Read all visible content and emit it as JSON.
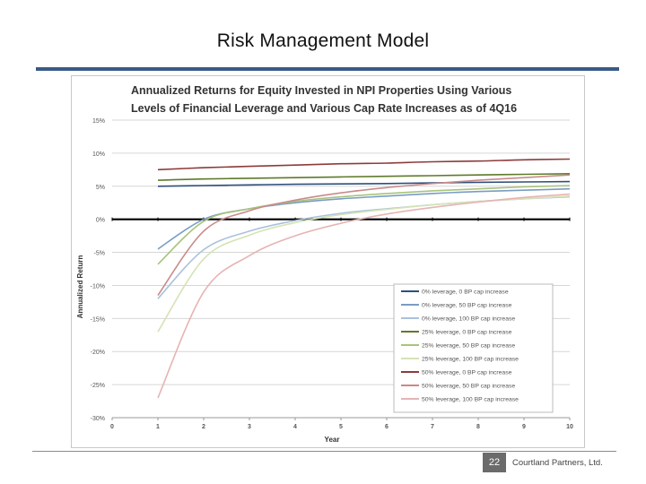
{
  "slide": {
    "title": "Risk Management Model",
    "page_number": "22",
    "company": "Courtland Partners, Ltd."
  },
  "chart_data": {
    "type": "line",
    "title": "Annualized Returns for Equity Invested in NPI Properties Using Various Levels of Financial Leverage and Various Cap Rate Increases as of 4Q16",
    "title_lines": [
      "Annualized Returns for Equity Invested in NPI Properties Using Various",
      "Levels of Financial Leverage and Various Cap Rate Increases as of 4Q16"
    ],
    "xlabel": "Year",
    "ylabel": "Annualized Return",
    "xlim": [
      0,
      10
    ],
    "ylim": [
      -30,
      15
    ],
    "x_ticks": [
      0,
      1,
      2,
      3,
      4,
      5,
      6,
      7,
      8,
      9,
      10
    ],
    "y_ticks": [
      {
        "value": 15,
        "label": "15%"
      },
      {
        "value": 10,
        "label": "10%"
      },
      {
        "value": 5,
        "label": "5%"
      },
      {
        "value": 0,
        "label": "0%"
      },
      {
        "value": -5,
        "label": "-5%"
      },
      {
        "value": -10,
        "label": "-10%"
      },
      {
        "value": -15,
        "label": "-15%"
      },
      {
        "value": -20,
        "label": "-20%"
      },
      {
        "value": -25,
        "label": "-25%"
      },
      {
        "value": -30,
        "label": "-30%"
      }
    ],
    "grid": true,
    "legend_position": "bottom-right",
    "x": [
      1,
      2,
      3,
      4,
      5,
      6,
      7,
      8,
      9,
      10
    ],
    "series": [
      {
        "name": "0% leverage, 0 BP cap increase",
        "color": "#2e4f7a",
        "values": [
          5.0,
          5.1,
          5.2,
          5.3,
          5.35,
          5.4,
          5.5,
          5.6,
          5.65,
          5.7
        ]
      },
      {
        "name": "0% leverage, 50 BP cap increase",
        "color": "#7a9cc4",
        "values": [
          -4.5,
          0.0,
          1.6,
          2.5,
          3.1,
          3.5,
          3.9,
          4.2,
          4.4,
          4.6
        ]
      },
      {
        "name": "0% leverage, 100 BP cap increase",
        "color": "#a9c2dc",
        "values": [
          -12.0,
          -4.6,
          -1.8,
          -0.2,
          0.9,
          1.6,
          2.2,
          2.7,
          3.1,
          3.4
        ]
      },
      {
        "name": "25% leverage, 0 BP cap increase",
        "color": "#5e7a2a",
        "values": [
          5.9,
          6.1,
          6.2,
          6.3,
          6.4,
          6.5,
          6.6,
          6.7,
          6.8,
          6.9
        ]
      },
      {
        "name": "25% leverage, 50 BP cap increase",
        "color": "#a8c47a",
        "values": [
          -6.8,
          -0.3,
          1.6,
          2.7,
          3.4,
          3.9,
          4.3,
          4.6,
          4.9,
          5.1
        ]
      },
      {
        "name": "25% leverage, 100 BP cap increase",
        "color": "#d5e3b5",
        "values": [
          -17.0,
          -6.0,
          -2.4,
          -0.5,
          0.7,
          1.5,
          2.2,
          2.7,
          3.1,
          3.5
        ]
      },
      {
        "name": "50% leverage, 0 BP cap increase",
        "color": "#8c3b3b",
        "values": [
          7.5,
          7.8,
          8.0,
          8.2,
          8.4,
          8.5,
          8.7,
          8.8,
          9.0,
          9.1
        ]
      },
      {
        "name": "50% leverage, 50 BP cap increase",
        "color": "#c98a8a",
        "values": [
          -11.5,
          -1.8,
          1.3,
          2.9,
          4.0,
          4.8,
          5.4,
          5.9,
          6.3,
          6.7
        ]
      },
      {
        "name": "50% leverage, 100 BP cap increase",
        "color": "#e6b4b4",
        "values": [
          -27.0,
          -11.0,
          -5.5,
          -2.5,
          -0.6,
          0.8,
          1.8,
          2.6,
          3.3,
          3.8
        ]
      }
    ]
  }
}
